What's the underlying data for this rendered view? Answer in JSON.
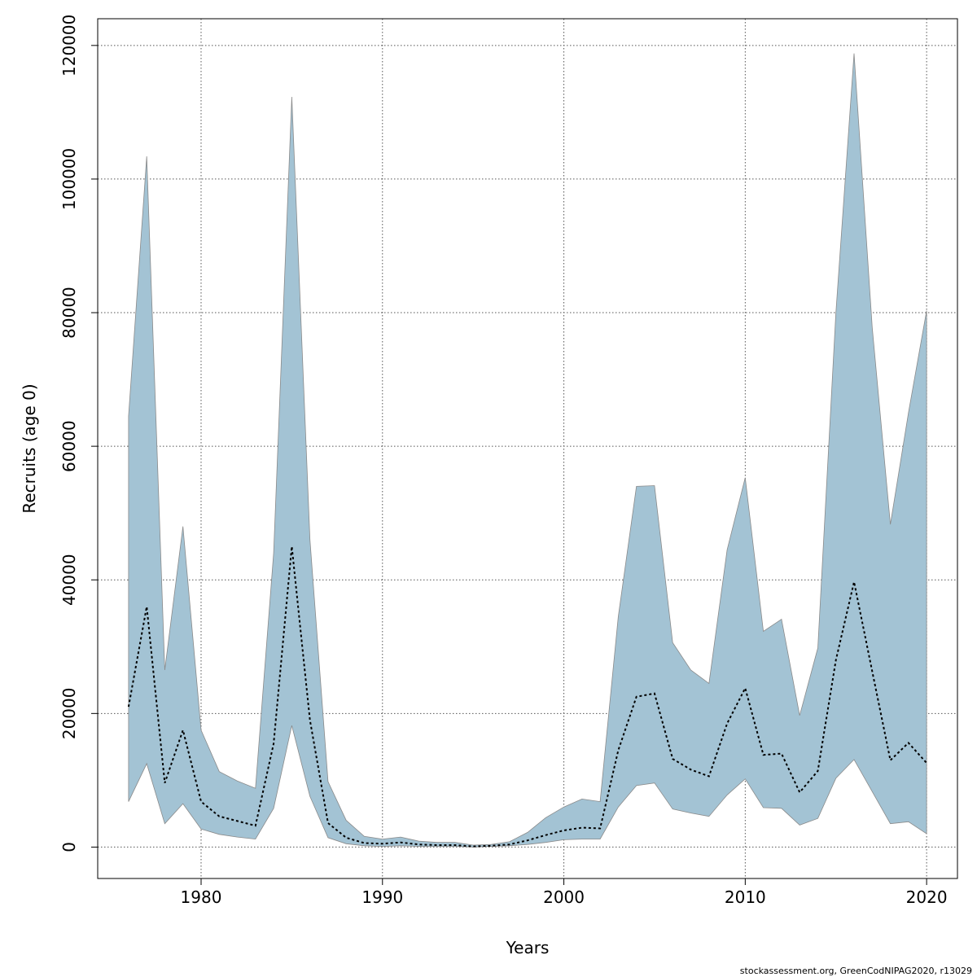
{
  "chart_data": {
    "type": "area",
    "xlabel": "Years",
    "ylabel": "Recruits (age 0)",
    "xlim": [
      1974.3,
      2021.7
    ],
    "ylim": [
      -4700,
      124000
    ],
    "x_ticks": [
      1980,
      1990,
      2000,
      2010,
      2020
    ],
    "y_ticks": [
      0,
      20000,
      40000,
      60000,
      80000,
      100000,
      120000
    ],
    "grid": true,
    "band_color": "#a3c3d4",
    "line_color": "#000000",
    "years": [
      1976,
      1977,
      1978,
      1979,
      1980,
      1981,
      1982,
      1983,
      1984,
      1985,
      1986,
      1987,
      1988,
      1989,
      1990,
      1991,
      1992,
      1993,
      1994,
      1995,
      1996,
      1997,
      1998,
      1999,
      2000,
      2001,
      2002,
      2003,
      2004,
      2005,
      2006,
      2007,
      2008,
      2009,
      2010,
      2011,
      2012,
      2013,
      2014,
      2015,
      2016,
      2017,
      2018,
      2019,
      2020
    ],
    "series": [
      {
        "role": "upper",
        "values": [
          64500,
          103400,
          26500,
          48000,
          17500,
          11300,
          9900,
          8800,
          44000,
          112300,
          46000,
          9800,
          4000,
          1600,
          1200,
          1500,
          900,
          700,
          700,
          300,
          400,
          800,
          2200,
          4400,
          6000,
          7200,
          6800,
          34500,
          54000,
          54100,
          30600,
          26500,
          24500,
          44500,
          55300,
          32300,
          34100,
          19700,
          29800,
          80000,
          118800,
          77800,
          48300,
          65000,
          80300
        ]
      },
      {
        "role": "estimate",
        "values": [
          21000,
          36000,
          9600,
          17500,
          6800,
          4600,
          3900,
          3200,
          15500,
          45000,
          19000,
          3600,
          1400,
          600,
          500,
          700,
          400,
          300,
          300,
          100,
          200,
          400,
          1000,
          1800,
          2500,
          2900,
          2800,
          14500,
          22500,
          23000,
          13200,
          11600,
          10600,
          18500,
          23800,
          13800,
          14000,
          8200,
          11400,
          28000,
          39700,
          26300,
          13000,
          15600,
          12600
        ]
      },
      {
        "role": "lower",
        "values": [
          6800,
          12500,
          3500,
          6500,
          2700,
          1900,
          1500,
          1200,
          5800,
          18200,
          7600,
          1400,
          500,
          200,
          100,
          200,
          100,
          100,
          100,
          0,
          100,
          200,
          400,
          700,
          1100,
          1200,
          1200,
          6000,
          9200,
          9600,
          5700,
          5100,
          4600,
          7800,
          10200,
          5900,
          5800,
          3300,
          4300,
          10300,
          13100,
          8300,
          3500,
          3800,
          2000
        ]
      }
    ]
  },
  "credit": "stockassessment.org, GreenCodNIPAG2020, r13029"
}
